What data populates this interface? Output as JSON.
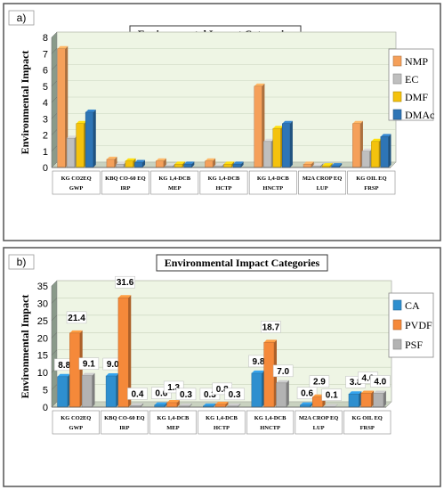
{
  "chart_data": [
    {
      "panel_label": "a)",
      "type": "bar",
      "title": "Environmental Impact Categories",
      "ylabel": "Environmental Impact",
      "xlabel": "",
      "ylim": [
        0,
        8
      ],
      "yticks": [
        0,
        1,
        2,
        3,
        4,
        5,
        6,
        7,
        8
      ],
      "grid": true,
      "legend": "right",
      "categories": [
        {
          "unit": "KG CO2EQ",
          "name": "GWP"
        },
        {
          "unit": "KBQ CO-60 EQ",
          "name": "IRP"
        },
        {
          "unit": "KG 1,4-DCB",
          "name": "MEP"
        },
        {
          "unit": "KG 1,4-DCB",
          "name": "HCTP"
        },
        {
          "unit": "KG 1,4-DCB",
          "name": "HNCTP"
        },
        {
          "unit": "M2A CROP EQ",
          "name": "LUP"
        },
        {
          "unit": "KG OIL EQ",
          "name": "FRSP"
        }
      ],
      "series": [
        {
          "name": "NMP",
          "color": "#f5a05a",
          "values": [
            7.3,
            0.5,
            0.4,
            0.4,
            5.0,
            0.2,
            2.7
          ]
        },
        {
          "name": "EC",
          "color": "#bfbfbf",
          "values": [
            1.8,
            0.2,
            0.1,
            0.1,
            1.6,
            0.1,
            1.0
          ]
        },
        {
          "name": "DMF",
          "color": "#f4c20d",
          "values": [
            2.7,
            0.4,
            0.2,
            0.2,
            2.4,
            0.1,
            1.6
          ]
        },
        {
          "name": "DMAc",
          "color": "#2e75b6",
          "values": [
            3.4,
            0.3,
            0.2,
            0.2,
            2.7,
            0.1,
            1.9
          ]
        }
      ]
    },
    {
      "panel_label": "b)",
      "type": "bar",
      "title": "Environmental Impact Categories",
      "ylabel": "Environmental Impact",
      "xlabel": "",
      "ylim": [
        0,
        35
      ],
      "yticks": [
        0,
        5,
        10,
        15,
        20,
        25,
        30,
        35
      ],
      "grid": true,
      "legend": "right",
      "categories": [
        {
          "unit": "KG CO2EQ",
          "name": "GWP"
        },
        {
          "unit": "KBQ CO-60 EQ",
          "name": "IRP"
        },
        {
          "unit": "KG 1,4-DCB",
          "name": "MEP"
        },
        {
          "unit": "KG 1,4-DCB",
          "name": "HCTP"
        },
        {
          "unit": "KG 1,4-DCB",
          "name": "HNCTP"
        },
        {
          "unit": "M2A CROP EQ",
          "name": "LUP"
        },
        {
          "unit": "KG OIL EQ",
          "name": "FRSP"
        }
      ],
      "series": [
        {
          "name": "CA",
          "color": "#2e8fcf",
          "values": [
            8.8,
            9.0,
            0.6,
            0.3,
            9.8,
            0.6,
            3.8
          ]
        },
        {
          "name": "PVDF",
          "color": "#f5893a",
          "values": [
            21.4,
            31.6,
            1.3,
            0.8,
            18.7,
            2.9,
            4.0
          ]
        },
        {
          "name": "PSF",
          "color": "#b3b3b3",
          "values": [
            9.1,
            0.4,
            0.3,
            0.3,
            7.0,
            0.1,
            4.0
          ]
        }
      ],
      "data_labels": [
        [
          "8.8",
          "9.0",
          "0.6",
          "0.3",
          "9.8",
          "0.6",
          "3.8"
        ],
        [
          "21.4",
          "31.6",
          "1.3",
          "0.8",
          "18.7",
          "2.9",
          "4.0"
        ],
        [
          "9.1",
          "0.4",
          "0.3",
          "0.3",
          "7.0",
          "0.1",
          "4.0"
        ]
      ]
    }
  ]
}
